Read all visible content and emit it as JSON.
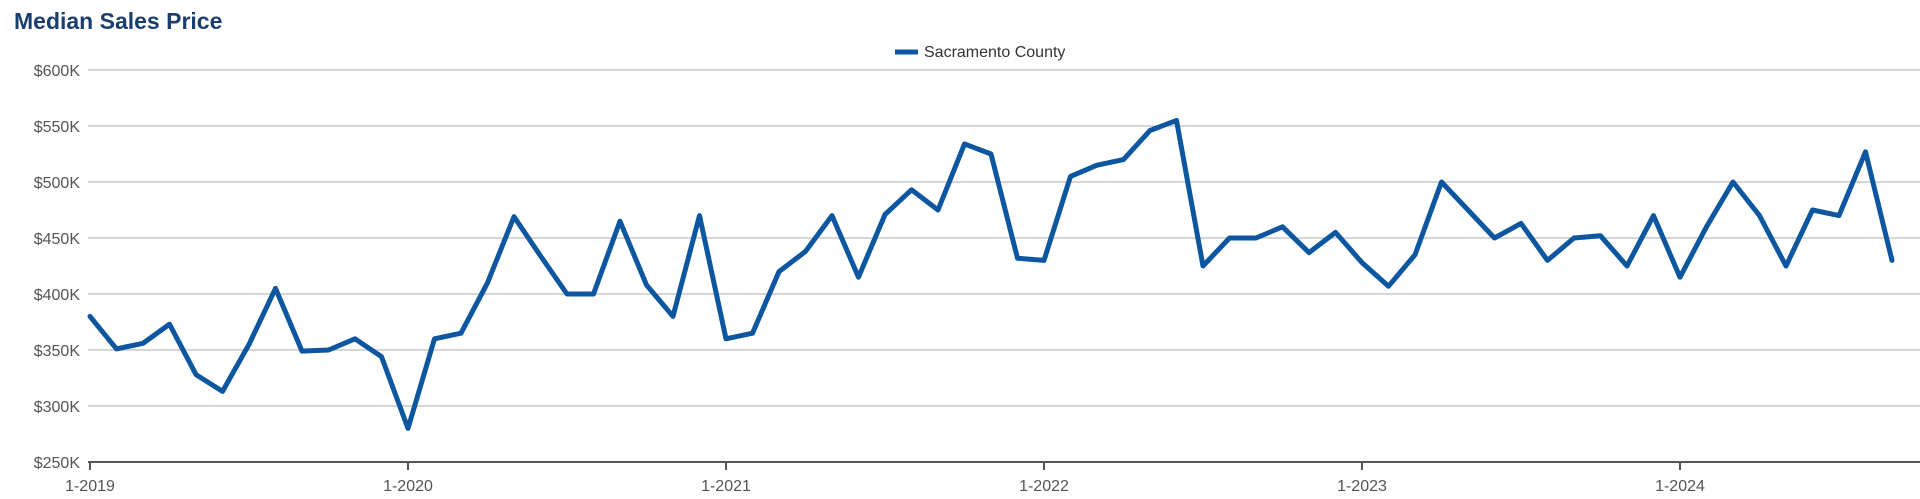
{
  "chart_data": {
    "type": "line",
    "title": "Median Sales Price",
    "xlabel": "",
    "ylabel": "",
    "ylim": [
      250000,
      600000
    ],
    "y_ticks": [
      {
        "value": 250000,
        "label": "$250K"
      },
      {
        "value": 300000,
        "label": "$300K"
      },
      {
        "value": 350000,
        "label": "$350K"
      },
      {
        "value": 400000,
        "label": "$400K"
      },
      {
        "value": 450000,
        "label": "$450K"
      },
      {
        "value": 500000,
        "label": "$500K"
      },
      {
        "value": 550000,
        "label": "$550K"
      },
      {
        "value": 600000,
        "label": "$600K"
      }
    ],
    "x_ticks": [
      {
        "value": "1-2019",
        "label": "1-2019"
      },
      {
        "value": "1-2020",
        "label": "1-2020"
      },
      {
        "value": "1-2021",
        "label": "1-2021"
      },
      {
        "value": "1-2022",
        "label": "1-2022"
      },
      {
        "value": "1-2023",
        "label": "1-2023"
      },
      {
        "value": "1-2024",
        "label": "1-2024"
      }
    ],
    "grid": true,
    "legend_position": "top-center",
    "series_color": "#0d56a0",
    "x": [
      "1-2019",
      "2-2019",
      "3-2019",
      "4-2019",
      "5-2019",
      "6-2019",
      "7-2019",
      "8-2019",
      "9-2019",
      "10-2019",
      "11-2019",
      "12-2019",
      "1-2020",
      "2-2020",
      "3-2020",
      "4-2020",
      "5-2020",
      "6-2020",
      "7-2020",
      "8-2020",
      "9-2020",
      "10-2020",
      "11-2020",
      "12-2020",
      "1-2021",
      "2-2021",
      "3-2021",
      "4-2021",
      "5-2021",
      "6-2021",
      "7-2021",
      "8-2021",
      "9-2021",
      "10-2021",
      "11-2021",
      "12-2021",
      "1-2022",
      "2-2022",
      "3-2022",
      "4-2022",
      "5-2022",
      "6-2022",
      "7-2022",
      "8-2022",
      "9-2022",
      "10-2022",
      "11-2022",
      "12-2022",
      "1-2023",
      "2-2023",
      "3-2023",
      "4-2023",
      "5-2023",
      "6-2023",
      "7-2023",
      "8-2023",
      "9-2023",
      "10-2023",
      "11-2023",
      "12-2023",
      "1-2024",
      "2-2024",
      "3-2024",
      "4-2024",
      "5-2024",
      "6-2024",
      "7-2024",
      "8-2024",
      "9-2024"
    ],
    "series": [
      {
        "name": "Sacramento County",
        "values": [
          380000,
          351000,
          356000,
          373000,
          328000,
          313000,
          355000,
          405000,
          349000,
          350000,
          360000,
          344000,
          280000,
          360000,
          365000,
          410000,
          469000,
          434000,
          400000,
          400000,
          465000,
          408000,
          380000,
          470000,
          360000,
          365000,
          420000,
          438000,
          470000,
          415000,
          471000,
          493000,
          475000,
          534000,
          525000,
          432000,
          430000,
          505000,
          515000,
          520000,
          546000,
          555000,
          425000,
          450000,
          450000,
          460000,
          437000,
          455000,
          428000,
          407000,
          435000,
          500000,
          475000,
          450000,
          463000,
          430000,
          450000,
          452000,
          425000,
          470000,
          415000,
          460000,
          500000,
          470000,
          425000,
          475000,
          470000,
          527000,
          430000
        ]
      }
    ]
  }
}
